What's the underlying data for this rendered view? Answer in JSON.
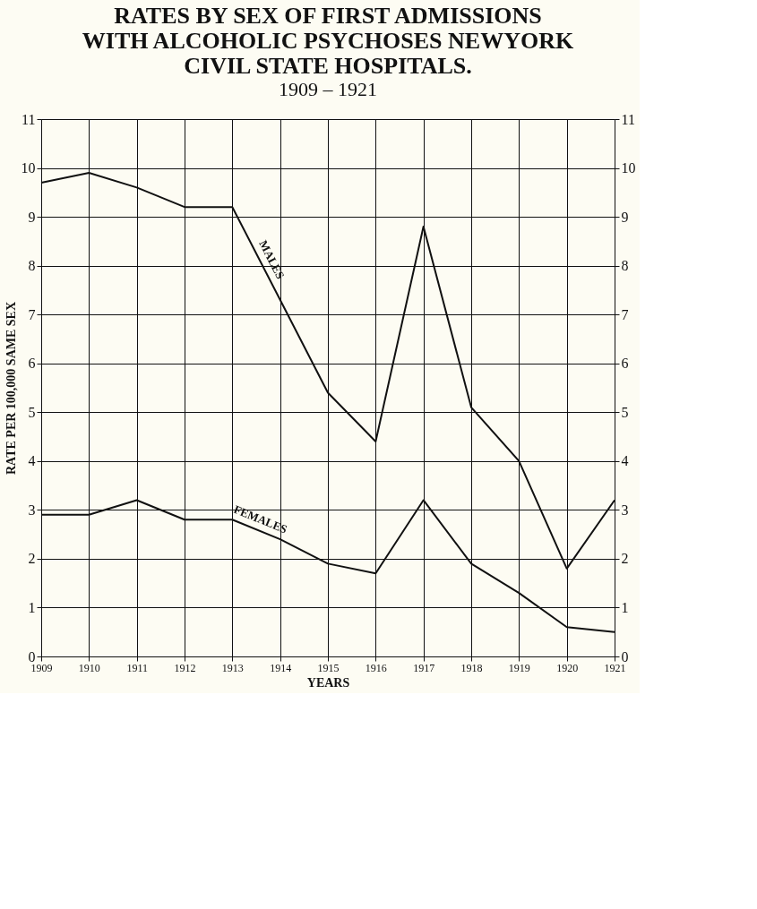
{
  "chart_data": {
    "type": "line",
    "title": [
      "RATES BY SEX OF FIRST ADMISSIONS",
      "WITH ALCOHOLIC PSYCHOSES NEWYORK",
      "CIVIL STATE HOSPITALS."
    ],
    "subtitle": "1909 – 1921",
    "xlabel": "YEARS",
    "ylabel": "RATE PER 100,000 SAME SEX",
    "categories": [
      "1909",
      "1910",
      "1911",
      "1912",
      "1913",
      "1914",
      "1915",
      "1916",
      "1917",
      "1918",
      "1919",
      "1920",
      "1921"
    ],
    "series": [
      {
        "name": "MALES",
        "color": "#111111",
        "values": [
          9.7,
          9.9,
          9.6,
          9.2,
          9.2,
          7.3,
          5.4,
          4.4,
          8.8,
          5.1,
          4.0,
          1.8,
          3.2
        ]
      },
      {
        "name": "FEMALES",
        "color": "#111111",
        "values": [
          2.9,
          2.9,
          3.2,
          2.8,
          2.8,
          2.4,
          1.9,
          1.7,
          3.2,
          1.9,
          1.3,
          0.6,
          0.5
        ]
      }
    ],
    "ylim": [
      0,
      11
    ],
    "yticks": [
      0,
      1,
      2,
      3,
      4,
      5,
      6,
      7,
      8,
      9,
      10,
      11
    ],
    "y2lim": [
      0,
      11
    ],
    "y2ticks": [
      0,
      1,
      2,
      3,
      4,
      5,
      6,
      7,
      8,
      9,
      10,
      11
    ],
    "grid": true,
    "marker": "none",
    "line_style": "solid"
  }
}
